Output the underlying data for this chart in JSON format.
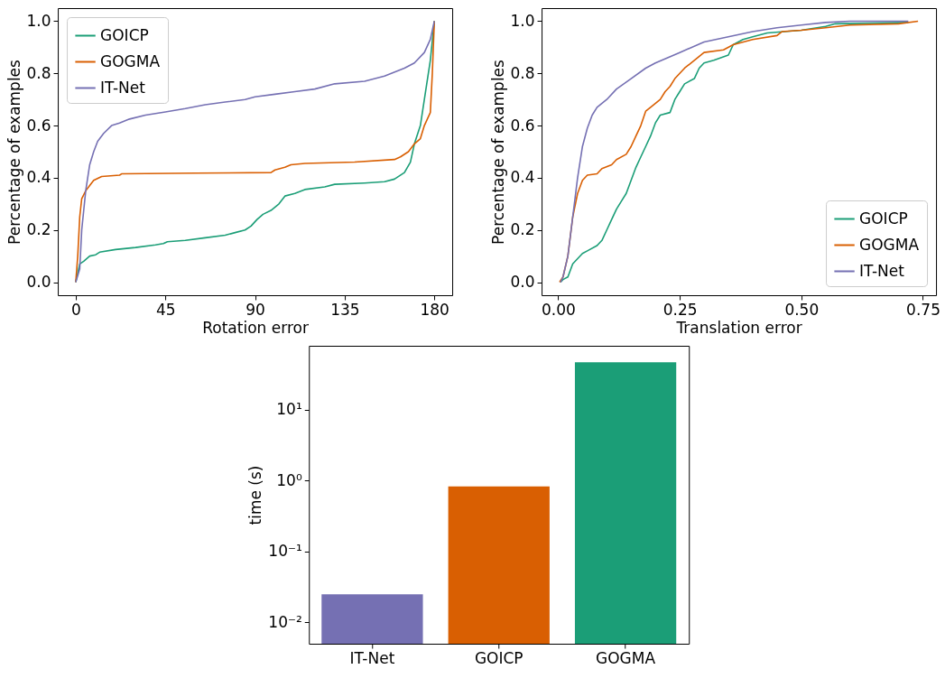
{
  "chart_data": [
    {
      "type": "line",
      "xlabel": "Rotation error",
      "ylabel": "Percentage of examples",
      "xlim": [
        -9,
        189
      ],
      "ylim": [
        -0.05,
        1.05
      ],
      "xticks": [
        0,
        45,
        90,
        135,
        180
      ],
      "yticks": [
        {
          "value": 0,
          "label": "0.0"
        },
        {
          "value": 0.2,
          "label": "0.2"
        },
        {
          "value": 0.4,
          "label": "0.4"
        },
        {
          "value": 0.6,
          "label": "0.6"
        },
        {
          "value": 0.8,
          "label": "0.8"
        },
        {
          "value": 1,
          "label": "1.0"
        }
      ],
      "legend": "top left",
      "grid": false,
      "series": [
        {
          "name": "GOICP",
          "color": "#1b9e77",
          "x": [
            0,
            2,
            4,
            7,
            10,
            12,
            20,
            30,
            40,
            44,
            46,
            55,
            65,
            75,
            80,
            85,
            88,
            91,
            94,
            98,
            102,
            105,
            110,
            115,
            125,
            130,
            145,
            155,
            160,
            165,
            168,
            170,
            173,
            175,
            178,
            180
          ],
          "values": [
            0,
            0.07,
            0.08,
            0.1,
            0.105,
            0.115,
            0.125,
            0.133,
            0.143,
            0.148,
            0.155,
            0.16,
            0.17,
            0.18,
            0.19,
            0.2,
            0.215,
            0.24,
            0.26,
            0.275,
            0.3,
            0.33,
            0.34,
            0.355,
            0.365,
            0.375,
            0.38,
            0.385,
            0.395,
            0.42,
            0.46,
            0.53,
            0.6,
            0.7,
            0.85,
            1
          ]
        },
        {
          "name": "GOGMA",
          "color": "#d95f02",
          "x": [
            0,
            1,
            2,
            3,
            5,
            7,
            9,
            13,
            22,
            23,
            60,
            98,
            100,
            105,
            108,
            115,
            140,
            160,
            163,
            167,
            170,
            173,
            175,
            178,
            179,
            180
          ],
          "values": [
            0,
            0.1,
            0.25,
            0.32,
            0.35,
            0.37,
            0.39,
            0.405,
            0.41,
            0.415,
            0.418,
            0.42,
            0.43,
            0.44,
            0.45,
            0.455,
            0.46,
            0.47,
            0.48,
            0.5,
            0.53,
            0.55,
            0.6,
            0.65,
            0.8,
            1
          ]
        },
        {
          "name": "IT-Net",
          "color": "#7570b3",
          "x": [
            0,
            2,
            3,
            5,
            7,
            9,
            11,
            14,
            18,
            22,
            27,
            35,
            45,
            55,
            65,
            75,
            85,
            90,
            100,
            110,
            120,
            130,
            145,
            155,
            165,
            170,
            175,
            178,
            180
          ],
          "values": [
            0,
            0.05,
            0.2,
            0.35,
            0.45,
            0.5,
            0.54,
            0.57,
            0.6,
            0.61,
            0.625,
            0.64,
            0.652,
            0.665,
            0.68,
            0.69,
            0.7,
            0.71,
            0.72,
            0.73,
            0.74,
            0.76,
            0.77,
            0.79,
            0.82,
            0.84,
            0.88,
            0.93,
            1
          ]
        }
      ]
    },
    {
      "type": "line",
      "xlabel": "Translation error",
      "ylabel": "Percentage of examples",
      "xlim": [
        -0.034,
        0.777
      ],
      "ylim": [
        -0.05,
        1.05
      ],
      "xticks": [
        {
          "value": 0,
          "label": "0.00"
        },
        {
          "value": 0.25,
          "label": "0.25"
        },
        {
          "value": 0.5,
          "label": "0.50"
        },
        {
          "value": 0.75,
          "label": "0.75"
        }
      ],
      "yticks": [
        {
          "value": 0,
          "label": "0.0"
        },
        {
          "value": 0.2,
          "label": "0.2"
        },
        {
          "value": 0.4,
          "label": "0.4"
        },
        {
          "value": 0.6,
          "label": "0.6"
        },
        {
          "value": 0.8,
          "label": "0.8"
        },
        {
          "value": 1,
          "label": "1.0"
        }
      ],
      "legend": "bottom right",
      "grid": false,
      "series": [
        {
          "name": "GOICP",
          "color": "#1b9e77",
          "x": [
            0.005,
            0.01,
            0.02,
            0.03,
            0.04,
            0.05,
            0.06,
            0.08,
            0.09,
            0.1,
            0.11,
            0.12,
            0.13,
            0.14,
            0.15,
            0.16,
            0.17,
            0.18,
            0.19,
            0.2,
            0.21,
            0.23,
            0.24,
            0.25,
            0.26,
            0.28,
            0.29,
            0.3,
            0.32,
            0.35,
            0.36,
            0.38,
            0.4,
            0.43,
            0.5,
            0.55,
            0.57,
            0.72
          ],
          "values": [
            0,
            0.01,
            0.02,
            0.07,
            0.09,
            0.11,
            0.12,
            0.14,
            0.16,
            0.2,
            0.24,
            0.28,
            0.31,
            0.34,
            0.39,
            0.44,
            0.48,
            0.52,
            0.56,
            0.61,
            0.64,
            0.65,
            0.7,
            0.73,
            0.76,
            0.78,
            0.82,
            0.84,
            0.85,
            0.87,
            0.91,
            0.93,
            0.94,
            0.955,
            0.965,
            0.98,
            0.99,
            0.995
          ]
        },
        {
          "name": "GOGMA",
          "color": "#d95f02",
          "x": [
            0.003,
            0.01,
            0.02,
            0.03,
            0.04,
            0.05,
            0.06,
            0.08,
            0.09,
            0.11,
            0.12,
            0.14,
            0.15,
            0.16,
            0.17,
            0.18,
            0.19,
            0.21,
            0.22,
            0.23,
            0.24,
            0.26,
            0.28,
            0.3,
            0.34,
            0.36,
            0.4,
            0.45,
            0.46,
            0.5,
            0.55,
            0.6,
            0.7,
            0.74
          ],
          "values": [
            0,
            0.02,
            0.1,
            0.25,
            0.34,
            0.39,
            0.41,
            0.415,
            0.435,
            0.45,
            0.47,
            0.49,
            0.52,
            0.56,
            0.6,
            0.655,
            0.67,
            0.7,
            0.73,
            0.75,
            0.78,
            0.82,
            0.85,
            0.88,
            0.89,
            0.91,
            0.93,
            0.945,
            0.96,
            0.965,
            0.975,
            0.985,
            0.99,
            1
          ]
        },
        {
          "name": "IT-Net",
          "color": "#7570b3",
          "x": [
            0.005,
            0.01,
            0.02,
            0.03,
            0.04,
            0.05,
            0.06,
            0.07,
            0.08,
            0.1,
            0.12,
            0.15,
            0.18,
            0.2,
            0.25,
            0.3,
            0.35,
            0.4,
            0.45,
            0.5,
            0.55,
            0.6,
            0.72
          ],
          "values": [
            0,
            0.02,
            0.1,
            0.25,
            0.4,
            0.52,
            0.59,
            0.64,
            0.67,
            0.7,
            0.74,
            0.78,
            0.82,
            0.84,
            0.88,
            0.92,
            0.94,
            0.96,
            0.975,
            0.985,
            0.995,
            1,
            1
          ]
        }
      ]
    },
    {
      "type": "bar",
      "ylabel": "time (s)",
      "log": true,
      "categories": [
        "IT-Net",
        "GOICP",
        "GOGMA"
      ],
      "values": [
        0.025,
        0.83,
        47
      ],
      "colors": [
        "#7570b3",
        "#d95f02",
        "#1b9e77"
      ],
      "ylim": [
        0.005,
        80
      ],
      "yticks": [
        {
          "value": 0.01,
          "label": "10⁻²"
        },
        {
          "value": 0.1,
          "label": "10⁻¹"
        },
        {
          "value": 1,
          "label": "10⁰"
        },
        {
          "value": 10,
          "label": "10¹"
        }
      ],
      "grid": false
    }
  ]
}
